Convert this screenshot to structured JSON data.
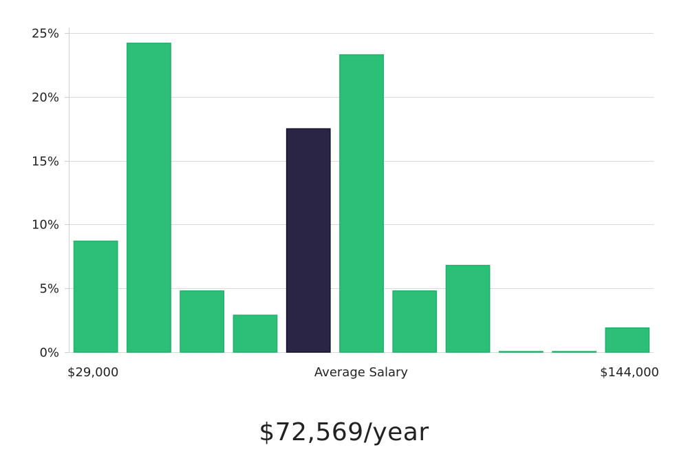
{
  "chart_data": {
    "type": "bar",
    "values": [
      8.7,
      24.2,
      4.8,
      2.9,
      17.5,
      23.3,
      4.8,
      6.8,
      0.05,
      0.05,
      1.9
    ],
    "highlight_index": 4,
    "ylim": [
      0,
      25
    ],
    "y_ticks": [
      0,
      5,
      10,
      15,
      20,
      25
    ],
    "y_tick_labels": [
      "0%",
      "5%",
      "10%",
      "15%",
      "20%",
      "25%"
    ],
    "x_labels": {
      "min": "$29,000",
      "center": "Average Salary",
      "max": "$144,000"
    },
    "grid": true,
    "colors": {
      "bar": "#2bbf77",
      "bar_edge": "#22b26b",
      "highlight": "#2a2545",
      "highlight_edge": "#16122e",
      "grid": "#d9d9d9",
      "axis": "#cccccc"
    }
  },
  "summary": {
    "salary_text": "$72,569/year"
  }
}
